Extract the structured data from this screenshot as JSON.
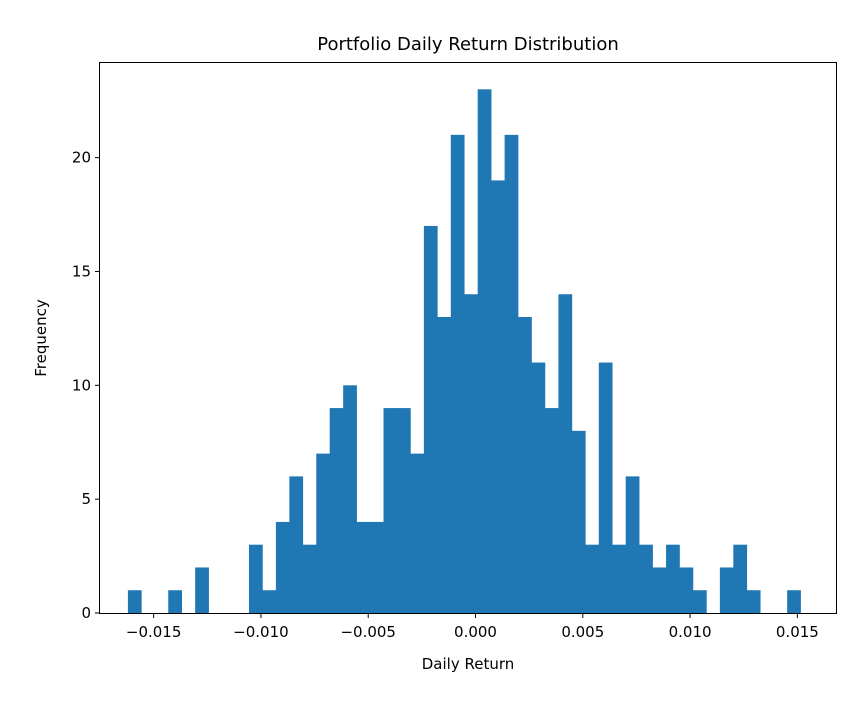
{
  "chart_data": {
    "type": "bar",
    "title": "Portfolio Daily Return Distribution",
    "xlabel": "Daily Return",
    "ylabel": "Frequency",
    "grid": false,
    "bar_color": "#1f77b4",
    "x_range": [
      -0.0175,
      0.0168
    ],
    "ylim": [
      0,
      24.2
    ],
    "bins": {
      "start": -0.0162,
      "width": 0.000627,
      "counts": [
        1,
        0,
        0,
        1,
        0,
        2,
        0,
        0,
        0,
        3,
        1,
        4,
        6,
        3,
        7,
        9,
        10,
        4,
        4,
        9,
        9,
        7,
        17,
        13,
        21,
        14,
        23,
        19,
        21,
        13,
        11,
        9,
        14,
        8,
        3,
        11,
        3,
        6,
        3,
        2,
        3,
        2,
        1,
        0,
        2,
        3,
        1,
        0,
        0,
        1
      ]
    },
    "x_ticks": [
      {
        "value": -0.015,
        "label": "−0.015"
      },
      {
        "value": -0.01,
        "label": "−0.010"
      },
      {
        "value": -0.005,
        "label": "−0.005"
      },
      {
        "value": 0.0,
        "label": "0.000"
      },
      {
        "value": 0.005,
        "label": "0.005"
      },
      {
        "value": 0.01,
        "label": "0.010"
      },
      {
        "value": 0.015,
        "label": "0.015"
      }
    ],
    "y_ticks": [
      {
        "value": 0,
        "label": "0"
      },
      {
        "value": 5,
        "label": "5"
      },
      {
        "value": 10,
        "label": "10"
      },
      {
        "value": 15,
        "label": "15"
      },
      {
        "value": 20,
        "label": "20"
      }
    ]
  }
}
